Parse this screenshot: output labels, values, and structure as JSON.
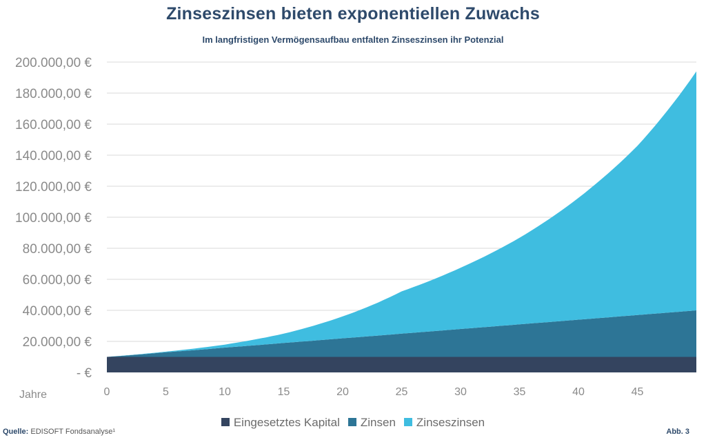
{
  "chart_data": {
    "type": "area",
    "title": "Zinseszinsen bieten exponentiellen Zuwachs",
    "subtitle": "Im langfristigen Vermögensaufbau entfalten Zinseszinsen ihr Potenzial",
    "xlabel": "Jahre",
    "ylabel": "",
    "x_ticks": [
      0,
      5,
      10,
      15,
      20,
      25,
      30,
      35,
      40,
      45
    ],
    "x_range": [
      0,
      50
    ],
    "y_ticks": [
      "-  €",
      "20.000,00 €",
      "40.000,00 €",
      "60.000,00 €",
      "80.000,00 €",
      "100.000,00 €",
      "120.000,00 €",
      "140.000,00 €",
      "160.000,00 €",
      "180.000,00 €",
      "200.000,00 €"
    ],
    "ylim": [
      0,
      200000
    ],
    "grid": true,
    "stacked": true,
    "x": [
      0,
      5,
      10,
      15,
      20,
      25,
      30,
      35,
      40,
      45,
      50
    ],
    "series": [
      {
        "name": "Eingesetztes Kapital",
        "color": "#34445f",
        "values": [
          10000,
          10000,
          10000,
          10000,
          10000,
          10000,
          10000,
          10000,
          10000,
          10000,
          10000
        ]
      },
      {
        "name": "Zinsen",
        "color": "#2d7596",
        "values": [
          0,
          3000,
          6000,
          9000,
          12000,
          15000,
          18000,
          21000,
          24000,
          27000,
          30000
        ]
      },
      {
        "name": "Zinseszinsen",
        "color": "#3fbde0",
        "values": [
          0,
          382,
          1908,
          5966,
          14071,
          27219,
          39435,
          55743,
          78510,
          109000,
          154000
        ]
      }
    ],
    "legend_position": "bottom",
    "source_label": "Quelle:",
    "source_text": "EDISOFT Fondsanalyse¹",
    "figure_label": "Abb. 3"
  }
}
